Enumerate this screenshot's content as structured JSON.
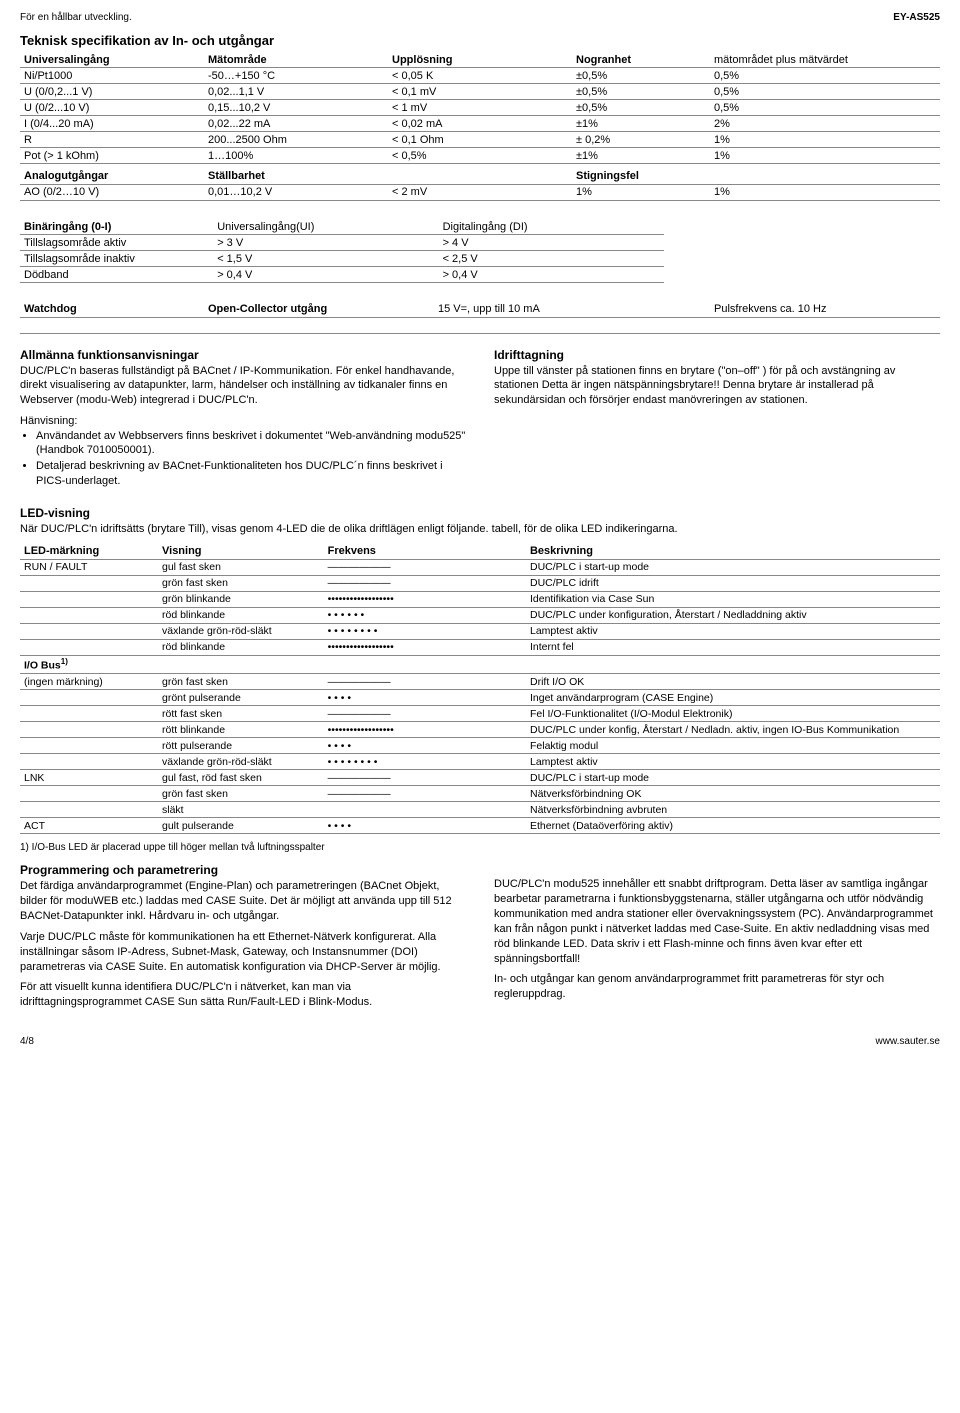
{
  "top": {
    "left": "För en hållbar utveckling.",
    "right": "EY-AS525"
  },
  "sect1": {
    "title": "Teknisk specifikation av In- och utgångar",
    "headers": [
      "Universalingång",
      "Mätområde",
      "Upplösning",
      "Nogranhet",
      "mätområdet plus mätvärdet"
    ],
    "rows": [
      [
        "Ni/Pt1000",
        "-50…+150 °C",
        "< 0,05 K",
        "±0,5%",
        "0,5%"
      ],
      [
        "U (0/0,2...1 V)",
        "0,02...1,1 V",
        "< 0,1 mV",
        "±0,5%",
        "0,5%"
      ],
      [
        "U (0/2...10 V)",
        "0,15...10,2 V",
        "< 1 mV",
        "±0,5%",
        "0,5%"
      ],
      [
        "I (0/4...20 mA)",
        "0,02...22 mA",
        "< 0,02 mA",
        "±1%",
        "2%"
      ],
      [
        "R",
        "200...2500 Ohm",
        "< 0,1 Ohm",
        "± 0,2%",
        "1%"
      ],
      [
        "Pot (> 1 kOhm)",
        "1…100%",
        "< 0,5%",
        "±1%",
        "1%"
      ]
    ],
    "analog_hdr": [
      "Analogutgångar",
      "Ställbarhet",
      "",
      "Stigningsfel",
      ""
    ],
    "analog_row": [
      "AO (0/2…10 V)",
      "0,01…10,2 V",
      "< 2 mV",
      "1%",
      "1%"
    ],
    "bin_hdr": [
      "Binäringång (0-I)",
      "Universalingång(UI)",
      "Digitalingång (DI)"
    ],
    "bin_rows": [
      [
        "Tillslagsområde aktiv",
        "> 3 V",
        "> 4 V"
      ],
      [
        "Tillslagsområde inaktiv",
        "< 1,5 V",
        "< 2,5 V"
      ],
      [
        "Dödband",
        "> 0,4 V",
        "> 0,4 V"
      ]
    ],
    "wd_hdr": [
      "Watchdog",
      "Open-Collector utgång",
      "15 V=, upp till 10 mA",
      "Pulsfrekvens ca. 10 Hz"
    ]
  },
  "funcs": {
    "left_title": "Allmänna funktionsanvisningar",
    "left_p1": "DUC/PLC'n baseras fullständigt på BACnet / IP-Kommunikation. För enkel handhavande, direkt visualisering av datapunkter, larm, händelser och inställning av tidkanaler finns en Webserver (modu-Web) integrerad i DUC/PLC'n.",
    "left_hint": "Hänvisning:",
    "left_b1": "Användandet av Webbservers finns beskrivet i dokumentet \"Web-användning modu525\" (Handbok 7010050001).",
    "left_b2": "Detaljerad beskrivning av BACnet-Funktionaliteten hos DUC/PLC´n  finns beskrivet i PICS-underlaget.",
    "right_title": "Idrifttagning",
    "right_p1": "Uppe till vänster på stationen finns en brytare (\"on–off\" ) för på och avstängning av stationen Detta är ingen nätspänningsbrytare!! Denna brytare är installerad på sekundärsidan och försörjer endast manövreringen av stationen."
  },
  "led": {
    "title": "LED-visning",
    "intro": "När DUC/PLC'n idriftsätts (brytare Till), visas genom 4-LED die de olika driftlägen enligt följande. tabell, för de olika LED indikeringarna.",
    "headers": [
      "LED-märkning",
      "Visning",
      "Frekvens",
      "Beskrivning"
    ],
    "group1_label": "RUN / FAULT",
    "group1": [
      [
        "gul fast sken",
        "——————",
        "DUC/PLC i start-up mode"
      ],
      [
        "grön fast sken",
        "——————",
        "DUC/PLC idrift"
      ],
      [
        "grön blinkande",
        "••••••••••••••••••",
        "Identifikation via Case Sun"
      ],
      [
        "röd  blinkande",
        "•   •   •   •   •   •",
        "DUC/PLC under konfiguration, Återstart / Nedladdning aktiv"
      ],
      [
        "växlande grön-röd-släkt",
        "• •  • •  • •  • •",
        "Lamptest aktiv"
      ],
      [
        "röd  blinkande",
        "••••••••••••••••••",
        "Internt fel"
      ]
    ],
    "group2_header": "I/O Bus",
    "group2_label": "(ingen märkning)",
    "group2": [
      [
        "grön fast sken",
        "——————",
        "Drift  I/O OK"
      ],
      [
        "grönt pulserande",
        "•    •    •    •",
        "Inget användarprogram (CASE Engine)"
      ],
      [
        "rött fast sken",
        "——————",
        "Fel I/O-Funktionalitet (I/O-Modul Elektronik)"
      ],
      [
        "rött blinkande",
        "••••••••••••••••••",
        "DUC/PLC under konfig, Återstart / Nedladn. aktiv, ingen IO-Bus Kommunikation"
      ],
      [
        "rött pulserande",
        "•    •    •    •",
        "Felaktig modul"
      ],
      [
        "växlande grön-röd-släkt",
        "• •  • •  • •  • •",
        "Lamptest aktiv"
      ]
    ],
    "group3_label": "LNK",
    "group3": [
      [
        "gul fast, röd fast sken",
        "——————",
        "DUC/PLC i start-up mode"
      ],
      [
        "grön fast sken",
        "——————",
        "Nätverksförbindning OK"
      ],
      [
        "släkt",
        "",
        "Nätverksförbindning avbruten"
      ]
    ],
    "group4_label": "ACT",
    "group4": [
      [
        "gult pulserande",
        "•    •    •    •",
        "Ethernet (Dataöverföring aktiv)"
      ]
    ],
    "footnote": "1) I/O-Bus LED är placerad uppe till höger mellan två luftningsspalter"
  },
  "prog": {
    "left_title": "Programmering och parametrering",
    "left_p1": "Det färdiga användarprogrammet (Engine-Plan) och parametreringen (BACnet Objekt, bilder för moduWEB etc.) laddas med CASE Suite. Det är möjligt att använda upp till 512 BACNet-Datapunkter inkl. Hårdvaru in- och utgångar.",
    "left_p2": "Varje DUC/PLC måste för kommunikationen ha ett Ethernet-Nätverk konfigurerat. Alla inställningar såsom IP-Adress, Subnet-Mask, Gateway, och Instansnummer (DOI) parametreras via CASE Suite. En automatisk konfiguration via DHCP-Server är möjlig.",
    "left_p3": "För att visuellt kunna identifiera DUC/PLC'n i nätverket, kan man via idrifttagningsprogrammet CASE Sun sätta Run/Fault-LED i Blink-Modus.",
    "right_p1": "DUC/PLC'n modu525 innehåller ett snabbt driftprogram. Detta läser av samtliga ingångar bearbetar parametrarna i funktionsbyggstenarna, ställer utgångarna och utför nödvändig kommunikation med andra stationer eller övervakningssystem (PC). Användarprogrammet kan från någon punkt i nätverket laddas med Case-Suite. En aktiv nedladdning visas med röd blinkande LED. Data skriv i ett Flash-minne och finns även kvar efter ett spänningsbortfall!",
    "right_p2": "In- och utgångar kan genom användarprogrammet fritt parametreras för styr och regleruppdrag."
  },
  "footer": {
    "left": "4/8",
    "right": "www.sauter.se"
  }
}
